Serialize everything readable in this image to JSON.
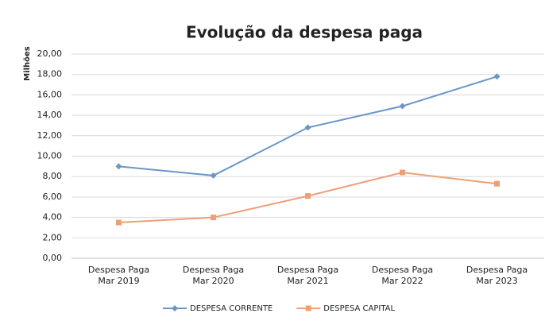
{
  "chart_data": {
    "type": "line",
    "title": "Evolução da despesa paga",
    "y_label": "Milhões",
    "categories": [
      "Despesa Paga Mar 2019",
      "Despesa Paga Mar 2020",
      "Despesa Paga Mar 2021",
      "Despesa Paga Mar 2022",
      "Despesa Paga Mar 2023"
    ],
    "series": [
      {
        "name": "DESPESA CORRENTE",
        "color": "#6b96c8",
        "values": [
          9.0,
          8.1,
          12.8,
          14.9,
          17.8
        ]
      },
      {
        "name": "DESPESA CAPITAL",
        "color": "#ef9f78",
        "values": [
          3.5,
          4.0,
          6.1,
          8.4,
          7.3
        ]
      }
    ],
    "ylim": [
      0,
      20
    ],
    "yticks": [
      {
        "value": 0,
        "label": "0,00"
      },
      {
        "value": 2,
        "label": "2,00"
      },
      {
        "value": 4,
        "label": "4,00"
      },
      {
        "value": 6,
        "label": "6,00"
      },
      {
        "value": 8,
        "label": "8,00"
      },
      {
        "value": 10,
        "label": "10,00"
      },
      {
        "value": 12,
        "label": "12,00"
      },
      {
        "value": 14,
        "label": "14,00"
      },
      {
        "value": 16,
        "label": "16,00"
      },
      {
        "value": 18,
        "label": "18,00"
      },
      {
        "value": 20,
        "label": "20,00"
      }
    ],
    "grid": true,
    "legend": "bottom"
  }
}
